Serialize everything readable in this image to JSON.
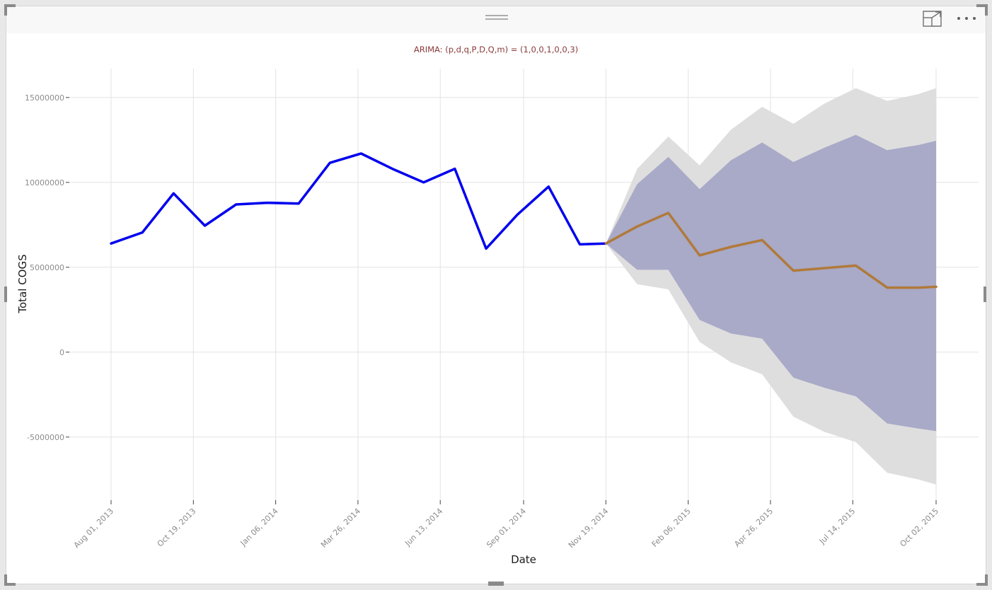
{
  "toolbar": {
    "drag_icon": "drag-handle-icon",
    "focus_icon": "focus-mode-icon",
    "more_icon": "more-options-icon"
  },
  "chart_data": {
    "type": "line",
    "title": "ARIMA: (p,d,q,P,D,Q,m) = (1,0,0,1,0,0,3)",
    "xlabel": "Date",
    "ylabel": "Total COGS",
    "x_ticks": [
      "2013-08-01",
      "2013-10-19",
      "2014-01-06",
      "2014-03-26",
      "2014-06-13",
      "2014-09-01",
      "2014-11-19",
      "2015-02-06",
      "2015-04-26",
      "2015-07-14",
      "2015-10-02"
    ],
    "x_tick_labels": [
      "Aug 01, 2013",
      "Oct 19, 2013",
      "Jan 06, 2014",
      "Mar 26, 2014",
      "Jun 13, 2014",
      "Sep 01, 2014",
      "Nov 19, 2014",
      "Feb 06, 2015",
      "Apr 26, 2015",
      "Jul 14, 2015",
      "Oct 02, 2015"
    ],
    "y_ticks": [
      -5000000,
      0,
      5000000,
      10000000,
      15000000
    ],
    "y_tick_labels": [
      "-5000000",
      "0",
      "5000000",
      "10000000",
      "15000000"
    ],
    "xlim": [
      "2013-08-01",
      "2015-10-02"
    ],
    "ylim": [
      -8800000,
      16700000
    ],
    "grid": true,
    "colors": {
      "actual": "#0000ee",
      "forecast": "#b07a3a",
      "band_80": "#a9a9c8",
      "band_95": "#dedede",
      "grid": "#e3e3e3",
      "title": "#8b3a3a"
    },
    "series": [
      {
        "kind": "line",
        "x": [
          "2013-08-01",
          "2013-08-31",
          "2013-09-30",
          "2013-10-30",
          "2013-11-29",
          "2013-12-29",
          "2014-01-28",
          "2014-02-27",
          "2014-03-29",
          "2014-04-28",
          "2014-05-28",
          "2014-06-27",
          "2014-07-27",
          "2014-08-26",
          "2014-09-25",
          "2014-10-25",
          "2014-11-19"
        ],
        "values": [
          6400000,
          7050000,
          9350000,
          7450000,
          8700000,
          8800000,
          8750000,
          11150000,
          11700000,
          10800000,
          10000000,
          10800000,
          6100000,
          8100000,
          9750000,
          6350000,
          6400000
        ]
      },
      {
        "kind": "forecast",
        "x": [
          "2014-11-19",
          "2014-12-19",
          "2015-01-18",
          "2015-02-17",
          "2015-03-19",
          "2015-04-18",
          "2015-05-18",
          "2015-06-17",
          "2015-07-17",
          "2015-08-16",
          "2015-09-15",
          "2015-10-02"
        ],
        "values": [
          6400000,
          7400000,
          8200000,
          5700000,
          6200000,
          6600000,
          4800000,
          4950000,
          5100000,
          3800000,
          3800000,
          3850000
        ],
        "lower_80": [
          6400000,
          4850000,
          4850000,
          1900000,
          1100000,
          800000,
          -1500000,
          -2100000,
          -2600000,
          -4200000,
          -4500000,
          -4650000
        ],
        "upper_80": [
          6400000,
          9900000,
          11500000,
          9600000,
          11300000,
          12350000,
          11200000,
          12050000,
          12800000,
          11900000,
          12200000,
          12450000
        ],
        "lower_95": [
          6400000,
          4000000,
          3700000,
          600000,
          -600000,
          -1300000,
          -3800000,
          -4700000,
          -5300000,
          -7100000,
          -7500000,
          -7800000
        ],
        "upper_95": [
          6400000,
          10800000,
          12700000,
          11000000,
          13100000,
          14450000,
          13450000,
          14650000,
          15550000,
          14800000,
          15200000,
          15550000
        ]
      }
    ]
  }
}
